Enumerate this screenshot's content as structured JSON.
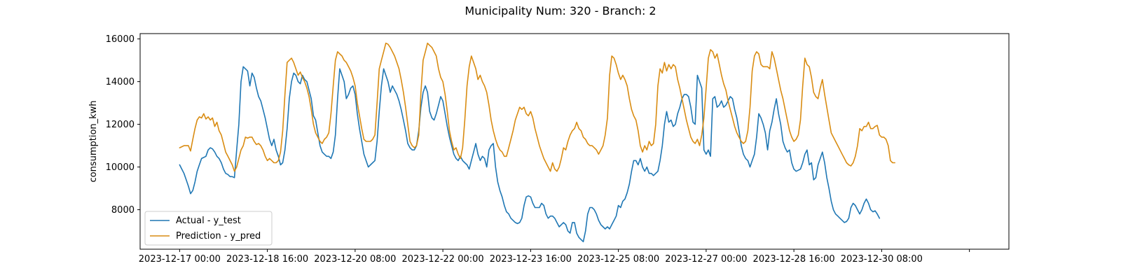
{
  "chart_data": {
    "type": "line",
    "title": "Municipality Num: 320 - Branch: 2",
    "xlabel": "",
    "ylabel": "consumption_kwh",
    "ylim": [
      6150,
      16250
    ],
    "yticks": [
      8000,
      10000,
      12000,
      14000,
      16000
    ],
    "xticks": [
      {
        "hours": 0,
        "label": "2023-12-17 00:00"
      },
      {
        "hours": 40,
        "label": "2023-12-18 16:00"
      },
      {
        "hours": 80,
        "label": "2023-12-20 08:00"
      },
      {
        "hours": 120,
        "label": "2023-12-22 00:00"
      },
      {
        "hours": 160,
        "label": "2023-12-23 16:00"
      },
      {
        "hours": 200,
        "label": "2023-12-25 08:00"
      },
      {
        "hours": 240,
        "label": "2023-12-27 00:00"
      },
      {
        "hours": 280,
        "label": "2023-12-28 16:00"
      },
      {
        "hours": 320,
        "label": "2023-12-30 08:00"
      },
      {
        "hours": 360,
        "label": ""
      }
    ],
    "xlim_hours": [
      -18,
      378
    ],
    "x_start": "2023-12-17 00:00",
    "x_step_hours": 1,
    "grid": false,
    "legend_position": "lower-left",
    "series": [
      {
        "name": "Actual - y_test",
        "color": "#1f77b4",
        "values": [
          10100,
          9900,
          9700,
          9400,
          9100,
          8750,
          8900,
          9300,
          9800,
          10100,
          10400,
          10450,
          10500,
          10800,
          10900,
          10850,
          10700,
          10500,
          10400,
          10200,
          9900,
          9700,
          9650,
          9550,
          9550,
          9500,
          10800,
          12000,
          14000,
          14700,
          14600,
          14500,
          13800,
          14400,
          14200,
          13700,
          13300,
          13100,
          12700,
          12300,
          11800,
          11300,
          11000,
          11300,
          10800,
          10500,
          10100,
          10200,
          10800,
          11800,
          13200,
          14000,
          14400,
          14300,
          14000,
          13900,
          14300,
          14100,
          14000,
          13600,
          13200,
          12400,
          12200,
          11600,
          11000,
          10700,
          10600,
          10500,
          10500,
          10400,
          10700,
          11500,
          13200,
          14600,
          14300,
          14000,
          13200,
          13400,
          13700,
          13800,
          13400,
          12500,
          11800,
          11200,
          10600,
          10300,
          10000,
          10100,
          10200,
          10300,
          11200,
          12600,
          13800,
          14600,
          14300,
          14000,
          13500,
          13800,
          13600,
          13400,
          13100,
          12700,
          12200,
          11700,
          11100,
          10900,
          10800,
          10800,
          11000,
          11700,
          12800,
          13500,
          13800,
          13500,
          12600,
          12300,
          12200,
          12500,
          12900,
          13300,
          13100,
          12500,
          11900,
          11400,
          11000,
          10600,
          10400,
          10300,
          10500,
          10300,
          10200,
          10100,
          9900,
          10300,
          10700,
          11100,
          10600,
          10300,
          10500,
          10400,
          10000,
          10800,
          11000,
          11100,
          10000,
          9300,
          8900,
          8600,
          8200,
          7900,
          7800,
          7600,
          7500,
          7400,
          7350,
          7400,
          7600,
          8200,
          8600,
          8650,
          8600,
          8300,
          8100,
          8100,
          8100,
          8300,
          8200,
          7800,
          7600,
          7700,
          7700,
          7600,
          7400,
          7200,
          7300,
          7400,
          7300,
          7000,
          6900,
          7400,
          7400,
          6900,
          6700,
          6600,
          6500,
          7000,
          7800,
          8100,
          8100,
          8000,
          7800,
          7500,
          7300,
          7200,
          7100,
          7200,
          7100,
          7300,
          7500,
          7700,
          8200,
          8100,
          8400,
          8500,
          8800,
          9200,
          9800,
          10300,
          10300,
          10100,
          10400,
          10000,
          9800,
          10000,
          9700,
          9700,
          9600,
          9700,
          9800,
          10300,
          11000,
          12000,
          12600,
          12100,
          12200,
          11900,
          12000,
          12500,
          12800,
          13200,
          13400,
          13400,
          13300,
          12800,
          12100,
          12000,
          14300,
          14000,
          13700,
          10800,
          10600,
          10800,
          10500,
          13200,
          13300,
          12800,
          12900,
          13100,
          12800,
          12900,
          13100,
          13300,
          13200,
          12700,
          12300,
          11700,
          11000,
          10600,
          10400,
          10300,
          10000,
          10300,
          10600,
          11400,
          12500,
          12300,
          12000,
          11600,
          10800,
          11700,
          12100,
          12700,
          13200,
          12500,
          12000,
          11200,
          10900,
          10700,
          10800,
          10200,
          9900,
          9800,
          9850,
          9900,
          10200,
          10600,
          10800,
          10100,
          10200,
          9400,
          9500,
          10100,
          10400,
          10700,
          10200,
          9500,
          9000,
          8400,
          8000,
          7800,
          7700,
          7600,
          7500,
          7400,
          7450,
          7600,
          8100,
          8300,
          8200,
          8000,
          7800,
          8000,
          8300,
          8500,
          8300,
          8000,
          7900,
          7950,
          7800,
          7600
        ]
      },
      {
        "name": "Prediction - y_pred",
        "color": "#d98c12",
        "values": [
          10900,
          10950,
          11000,
          11000,
          11000,
          10750,
          11300,
          11800,
          12200,
          12350,
          12300,
          12500,
          12250,
          12350,
          12200,
          12300,
          11900,
          12100,
          11700,
          11500,
          11100,
          10700,
          10500,
          10300,
          10100,
          9800,
          10000,
          10400,
          10800,
          11000,
          11400,
          11350,
          11400,
          11400,
          11200,
          11050,
          11100,
          11000,
          10800,
          10500,
          10300,
          10400,
          10300,
          10200,
          10200,
          10300,
          10700,
          11700,
          13400,
          14900,
          15000,
          15100,
          14900,
          14600,
          14300,
          14450,
          14200,
          14000,
          13700,
          13300,
          12700,
          12000,
          11600,
          11400,
          11200,
          11100,
          11300,
          11400,
          11600,
          12500,
          13800,
          15000,
          15400,
          15300,
          15200,
          15000,
          14900,
          14700,
          14500,
          14200,
          13800,
          13000,
          12400,
          11800,
          11300,
          11200,
          11200,
          11200,
          11300,
          11500,
          13000,
          14600,
          15000,
          15400,
          15800,
          15750,
          15600,
          15400,
          15200,
          14900,
          14600,
          14100,
          13500,
          12800,
          12000,
          11200,
          11000,
          10900,
          11000,
          11500,
          13500,
          15000,
          15400,
          15800,
          15700,
          15600,
          15400,
          15200,
          14600,
          14200,
          14000,
          13400,
          12600,
          11700,
          11200,
          10800,
          10900,
          10600,
          10400,
          10900,
          12200,
          13800,
          14700,
          15200,
          14900,
          14600,
          14100,
          14300,
          14000,
          13800,
          13500,
          12900,
          12200,
          11700,
          11300,
          11000,
          10800,
          10700,
          10500,
          10500,
          10900,
          11300,
          11700,
          12200,
          12500,
          12800,
          12700,
          12800,
          12500,
          12400,
          12600,
          12300,
          11800,
          11400,
          11000,
          10700,
          10400,
          10200,
          10000,
          9800,
          10200,
          9900,
          9800,
          10000,
          10400,
          10900,
          10800,
          11200,
          11500,
          11700,
          11800,
          12100,
          11800,
          11700,
          11400,
          11300,
          11100,
          11000,
          11000,
          10900,
          10800,
          10600,
          10800,
          11000,
          11500,
          12300,
          14300,
          15200,
          15100,
          14800,
          14400,
          14100,
          14300,
          14100,
          13800,
          13200,
          12700,
          12400,
          12200,
          11700,
          11000,
          10700,
          11000,
          10800,
          11200,
          11000,
          11100,
          12000,
          13800,
          14600,
          14400,
          14900,
          14500,
          14800,
          14600,
          14800,
          14700,
          14100,
          13700,
          13200,
          12700,
          12200,
          11800,
          11400,
          11200,
          11100,
          11300,
          11000,
          11500,
          12300,
          13700,
          15100,
          15500,
          15400,
          15100,
          15300,
          14800,
          14300,
          13900,
          13600,
          13100,
          12700,
          12300,
          11900,
          11600,
          11400,
          11200,
          11100,
          11200,
          11700,
          12800,
          14500,
          15200,
          15400,
          15300,
          14800,
          14700,
          14700,
          14700,
          14600,
          15400,
          15100,
          14600,
          14100,
          13600,
          13200,
          12700,
          12200,
          11700,
          11400,
          11200,
          11300,
          11500,
          12200,
          13800,
          15100,
          14800,
          14700,
          14200,
          13500,
          13300,
          13200,
          13700,
          14100,
          13400,
          12800,
          12200,
          11600,
          11400,
          11200,
          11000,
          10800,
          10600,
          10400,
          10200,
          10100,
          10050,
          10200,
          10500,
          11000,
          11800,
          11700,
          11900,
          11900,
          12100,
          11800,
          11800,
          11900,
          11950,
          11500,
          11400,
          11400,
          11300,
          11000,
          10300,
          10200,
          10200
        ]
      }
    ]
  }
}
